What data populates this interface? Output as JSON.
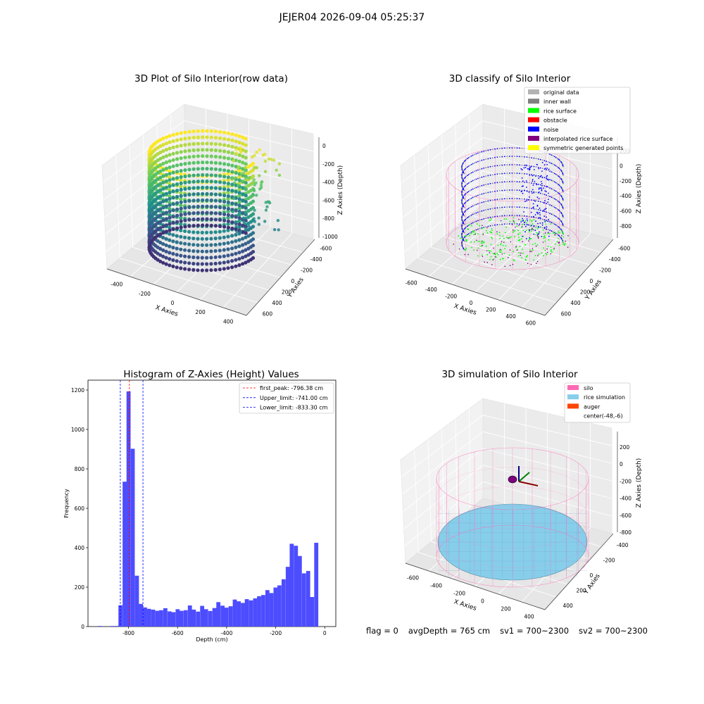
{
  "figure": {
    "suptitle": "JEJER04 2026-09-04 05:25:37",
    "footer": {
      "flag": "flag = 0",
      "avg_depth": "avgDepth = 765 cm",
      "sv1": "sv1 = 700~2300",
      "sv2": "sv2 = 700~2300"
    }
  },
  "colors": {
    "original_data": "#b3b3b3",
    "inner_wall": "#808080",
    "rice_surface": "#00ff00",
    "obstacle": "#ff0000",
    "noise": "#0000ff",
    "interpolated_rice_surface": "#800080",
    "symmetric_generated_points": "#ffff00",
    "silo": "#ff69b4",
    "rice_simulation": "#87ceeb",
    "auger": "#ff4500",
    "histogram_bar": "#4d4dff",
    "first_peak_line": "#ff0000",
    "limit_line": "#0000ff"
  },
  "chart_data": [
    {
      "type": "scatter",
      "subtype": "3d",
      "title": "3D Plot of Silo Interior(row data)",
      "xlabel": "X Axies",
      "ylabel": "Y Axies",
      "zlabel": "Z Axies (Depth)",
      "x_ticks": [
        "-400",
        "-200",
        "0",
        "200",
        "400"
      ],
      "y_ticks": [
        "-600",
        "-400",
        "-200",
        "0",
        "200",
        "400",
        "600"
      ],
      "z_ticks": [
        "0",
        "-200",
        "-400",
        "-600",
        "-800",
        "-1000"
      ],
      "colormap": "viridis"
    },
    {
      "type": "scatter",
      "subtype": "3d",
      "title": "3D classify of Silo Interior",
      "xlabel": "X Axies",
      "ylabel": "Y Axies",
      "zlabel": "Z Axies (Depth)",
      "x_ticks": [
        "-600",
        "-400",
        "-200",
        "0",
        "200",
        "400",
        "600"
      ],
      "y_ticks": [
        "-600",
        "-400",
        "-200",
        "0",
        "200",
        "400",
        "600"
      ],
      "z_ticks": [
        "200",
        "0",
        "-200",
        "-400",
        "-600",
        "-800"
      ],
      "legend": [
        "original data",
        "inner wall",
        "rice surface",
        "obstacle",
        "noise",
        "interpolated rice surface",
        "symmetric generated points"
      ],
      "legend_position": "top-right"
    },
    {
      "type": "bar",
      "subtype": "histogram",
      "title": "Histogram of Z-Axies (Height) Values",
      "xlabel": "Depth (cm)",
      "ylabel": "Frequency",
      "xlim": [
        -965,
        45
      ],
      "ylim": [
        0,
        1250
      ],
      "x_ticks": [
        -800,
        -600,
        -400,
        -200,
        0
      ],
      "y_ticks": [
        0,
        200,
        400,
        600,
        800,
        1000,
        1200
      ],
      "bin_width": 16.6,
      "bins": [
        [
          -924,
          3
        ],
        [
          -874,
          3
        ],
        [
          -857,
          3
        ],
        [
          -841,
          108
        ],
        [
          -824,
          735
        ],
        [
          -808,
          1193
        ],
        [
          -791,
          902
        ],
        [
          -774,
          258
        ],
        [
          -758,
          115
        ],
        [
          -741,
          97
        ],
        [
          -725,
          90
        ],
        [
          -708,
          86
        ],
        [
          -691,
          80
        ],
        [
          -675,
          83
        ],
        [
          -658,
          93
        ],
        [
          -641,
          77
        ],
        [
          -625,
          73
        ],
        [
          -608,
          88
        ],
        [
          -592,
          80
        ],
        [
          -575,
          83
        ],
        [
          -558,
          107
        ],
        [
          -542,
          86
        ],
        [
          -525,
          76
        ],
        [
          -508,
          105
        ],
        [
          -492,
          88
        ],
        [
          -475,
          79
        ],
        [
          -458,
          94
        ],
        [
          -442,
          124
        ],
        [
          -425,
          106
        ],
        [
          -409,
          96
        ],
        [
          -392,
          103
        ],
        [
          -375,
          137
        ],
        [
          -359,
          128
        ],
        [
          -342,
          120
        ],
        [
          -326,
          139
        ],
        [
          -309,
          133
        ],
        [
          -292,
          143
        ],
        [
          -276,
          154
        ],
        [
          -259,
          160
        ],
        [
          -242,
          185
        ],
        [
          -226,
          170
        ],
        [
          -209,
          198
        ],
        [
          -193,
          209
        ],
        [
          -176,
          240
        ],
        [
          -159,
          303
        ],
        [
          -143,
          420
        ],
        [
          -126,
          410
        ],
        [
          -110,
          358
        ],
        [
          -93,
          270
        ],
        [
          -76,
          282
        ],
        [
          -60,
          150
        ],
        [
          -43,
          425
        ]
      ],
      "lines": [
        {
          "label": "first_peak: -796.38 cm",
          "x": -796.38,
          "color_key": "first_peak_line"
        },
        {
          "label": "Upper_limit: -741.00 cm",
          "x": -741.0,
          "color_key": "limit_line"
        },
        {
          "label": "Lower_limit: -833.30 cm",
          "x": -833.3,
          "color_key": "limit_line"
        }
      ],
      "legend_position": "top-right"
    },
    {
      "type": "scatter",
      "subtype": "3d-surface",
      "title": "3D simulation of Silo Interior",
      "xlabel": "X Axies",
      "ylabel": "Y Axies",
      "zlabel": "Z Axies (Depth)",
      "x_ticks": [
        "-600",
        "-400",
        "-200",
        "0",
        "200",
        "400"
      ],
      "y_ticks": [
        "-400",
        "-200",
        "0",
        "200",
        "400"
      ],
      "z_ticks": [
        "200",
        "0",
        "-200",
        "-400",
        "-600",
        "-800"
      ],
      "legend": [
        "silo",
        "rice simulation",
        "auger",
        "center(-48,-6)"
      ],
      "legend_position": "top-right"
    }
  ]
}
